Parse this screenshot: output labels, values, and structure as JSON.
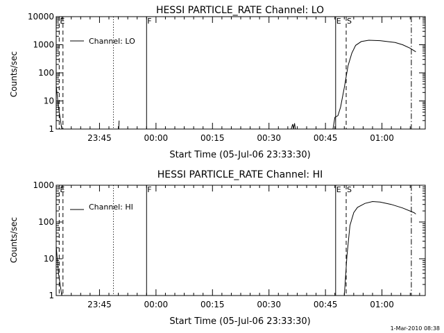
{
  "footer_date": "1-Mar-2010 08:38",
  "chart_data": [
    {
      "type": "line",
      "title": "HESSI PARTICLE_RATE Channel: LO",
      "xlabel": "Start Time (05-Jul-06 23:33:30)",
      "ylabel": "Counts/sec",
      "yscale": "log",
      "ylim": [
        1,
        10000
      ],
      "xlim_minutes": [
        0,
        98
      ],
      "y_ticks": [
        {
          "v": 1,
          "label": "1"
        },
        {
          "v": 10,
          "label": "10"
        },
        {
          "v": 100,
          "label": "100"
        },
        {
          "v": 1000,
          "label": "1000"
        },
        {
          "v": 10000,
          "label": "10000"
        }
      ],
      "x_ticks": [
        {
          "t": 11.5,
          "label": "23:45"
        },
        {
          "t": 26.5,
          "label": "00:00"
        },
        {
          "t": 41.5,
          "label": "00:15"
        },
        {
          "t": 56.5,
          "label": "00:30"
        },
        {
          "t": 71.5,
          "label": "00:45"
        },
        {
          "t": 86.5,
          "label": "01:00"
        }
      ],
      "legend": {
        "label": "Channel: LO",
        "position": "top-left"
      },
      "markers": [
        {
          "t": 0.8,
          "style": "dashed",
          "label": "E"
        },
        {
          "t": 1.8,
          "style": "dashed",
          "label": ""
        },
        {
          "t": 15.2,
          "style": "dotted",
          "label": ""
        },
        {
          "t": 24.0,
          "style": "solid",
          "label": "F"
        },
        {
          "t": 74.2,
          "style": "solid",
          "label": "E"
        },
        {
          "t": 77.0,
          "style": "dashed",
          "label": "S"
        },
        {
          "t": 94.3,
          "style": "dashdot",
          "label": ""
        }
      ],
      "segments": [
        [
          [
            0,
            35
          ],
          [
            0.6,
            6
          ],
          [
            1.5,
            1
          ]
        ],
        [
          [
            16.6,
            1
          ],
          [
            16.7,
            2
          ]
        ],
        [
          [
            62.4,
            1
          ],
          [
            62.8,
            1.5
          ],
          [
            63.0,
            1
          ],
          [
            63.3,
            1.6
          ],
          [
            63.5,
            1
          ]
        ],
        [
          [
            73.5,
            1
          ],
          [
            74.0,
            2.6
          ],
          [
            74.8,
            3
          ],
          [
            75.5,
            6
          ],
          [
            76.5,
            30
          ],
          [
            77.5,
            180
          ],
          [
            78.5,
            500
          ],
          [
            79.5,
            950
          ],
          [
            81,
            1300
          ],
          [
            83,
            1450
          ],
          [
            86,
            1400
          ],
          [
            90,
            1200
          ],
          [
            92,
            1000
          ],
          [
            94,
            750
          ],
          [
            95.5,
            560
          ]
        ]
      ]
    },
    {
      "type": "line",
      "title": "HESSI PARTICLE_RATE Channel: HI",
      "xlabel": "Start Time (05-Jul-06 23:33:30)",
      "ylabel": "Counts/sec",
      "yscale": "log",
      "ylim": [
        1,
        1000
      ],
      "xlim_minutes": [
        0,
        98
      ],
      "y_ticks": [
        {
          "v": 1,
          "label": "1"
        },
        {
          "v": 10,
          "label": "10"
        },
        {
          "v": 100,
          "label": "100"
        },
        {
          "v": 1000,
          "label": "1000"
        }
      ],
      "x_ticks": [
        {
          "t": 11.5,
          "label": "23:45"
        },
        {
          "t": 26.5,
          "label": "00:00"
        },
        {
          "t": 41.5,
          "label": "00:15"
        },
        {
          "t": 56.5,
          "label": "00:30"
        },
        {
          "t": 71.5,
          "label": "00:45"
        },
        {
          "t": 86.5,
          "label": "01:00"
        }
      ],
      "legend": {
        "label": "Channel: HI",
        "position": "top-left"
      },
      "markers": [
        {
          "t": 0.8,
          "style": "dashed",
          "label": "E"
        },
        {
          "t": 1.8,
          "style": "dashed",
          "label": ""
        },
        {
          "t": 15.2,
          "style": "dotted",
          "label": ""
        },
        {
          "t": 24.0,
          "style": "solid",
          "label": "F"
        },
        {
          "t": 74.2,
          "style": "solid",
          "label": "E"
        },
        {
          "t": 77.0,
          "style": "dashed",
          "label": "S"
        },
        {
          "t": 94.3,
          "style": "dashdot",
          "label": ""
        }
      ],
      "segments": [
        [
          [
            0,
            22
          ],
          [
            0.6,
            4
          ],
          [
            1.5,
            1
          ]
        ],
        [
          [
            76.5,
            1
          ],
          [
            77.2,
            12
          ],
          [
            78,
            80
          ],
          [
            79,
            180
          ],
          [
            80,
            250
          ],
          [
            82,
            320
          ],
          [
            84,
            360
          ],
          [
            86,
            350
          ],
          [
            89,
            300
          ],
          [
            92,
            240
          ],
          [
            95,
            180
          ],
          [
            95.5,
            165
          ]
        ]
      ]
    }
  ]
}
